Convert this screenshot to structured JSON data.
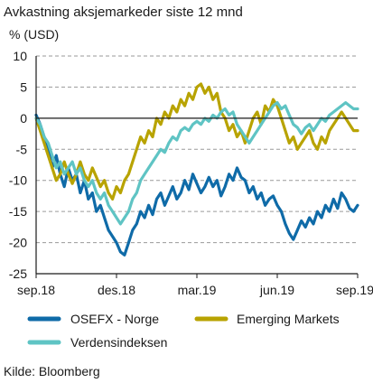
{
  "chart_data": {
    "type": "line",
    "title": "Avkastning aksjemarkeder siste 12 mnd",
    "ylabel": "% (USD)",
    "ylim": [
      -25,
      10
    ],
    "yticks": [
      10,
      5,
      0,
      -5,
      -10,
      -15,
      -20,
      -25
    ],
    "x_start": 0,
    "x_end": 12,
    "xticks": [
      {
        "x": 0,
        "label": "sep.18"
      },
      {
        "x": 3,
        "label": "des.18"
      },
      {
        "x": 6,
        "label": "mar.19"
      },
      {
        "x": 9,
        "label": "jun.19"
      },
      {
        "x": 12,
        "label": "sep.19"
      }
    ],
    "grid": "dashed horizontal",
    "legend_position": "bottom",
    "source": "Kilde: Bloomberg",
    "series": [
      {
        "name": "OSEFX - Norge",
        "color": "#0f6ba8",
        "x": [
          0,
          0.15,
          0.3,
          0.45,
          0.6,
          0.75,
          0.9,
          1.05,
          1.2,
          1.35,
          1.5,
          1.65,
          1.8,
          1.95,
          2.1,
          2.25,
          2.4,
          2.55,
          2.7,
          2.85,
          3.0,
          3.15,
          3.3,
          3.45,
          3.6,
          3.75,
          3.9,
          4.05,
          4.2,
          4.35,
          4.5,
          4.65,
          4.8,
          4.95,
          5.1,
          5.25,
          5.4,
          5.55,
          5.7,
          5.85,
          6.0,
          6.15,
          6.3,
          6.45,
          6.6,
          6.75,
          6.9,
          7.05,
          7.2,
          7.35,
          7.5,
          7.65,
          7.8,
          7.95,
          8.1,
          8.25,
          8.4,
          8.55,
          8.7,
          8.85,
          9.0,
          9.15,
          9.3,
          9.45,
          9.6,
          9.75,
          9.9,
          10.05,
          10.2,
          10.35,
          10.5,
          10.65,
          10.8,
          10.95,
          11.1,
          11.25,
          11.4,
          11.55,
          11.7,
          11.85,
          12.0
        ],
        "values": [
          0.5,
          -1,
          -3,
          -5,
          -8,
          -6,
          -9,
          -11,
          -8,
          -10,
          -9,
          -12,
          -10,
          -13,
          -12,
          -15,
          -14,
          -16,
          -18,
          -19,
          -20,
          -21.5,
          -22,
          -20,
          -18,
          -17,
          -15,
          -16,
          -14,
          -15.5,
          -13,
          -12,
          -14,
          -12.5,
          -11,
          -13,
          -12,
          -10,
          -11.5,
          -9,
          -10.5,
          -12,
          -11,
          -9.5,
          -11,
          -10,
          -12.5,
          -11,
          -9,
          -10,
          -8,
          -9.5,
          -10,
          -12,
          -11,
          -13,
          -12,
          -14,
          -13,
          -12.5,
          -14,
          -15,
          -17,
          -18.5,
          -19.5,
          -18,
          -16.5,
          -17.5,
          -16,
          -17,
          -15,
          -16,
          -14,
          -15,
          -13,
          -14.5,
          -12,
          -13,
          -14.5,
          -15,
          -14
        ]
      },
      {
        "name": "Emerging Markets",
        "color": "#b8a300",
        "x": [
          0,
          0.15,
          0.3,
          0.45,
          0.6,
          0.75,
          0.9,
          1.05,
          1.2,
          1.35,
          1.5,
          1.65,
          1.8,
          1.95,
          2.1,
          2.25,
          2.4,
          2.55,
          2.7,
          2.85,
          3.0,
          3.15,
          3.3,
          3.45,
          3.6,
          3.75,
          3.9,
          4.05,
          4.2,
          4.35,
          4.5,
          4.65,
          4.8,
          4.95,
          5.1,
          5.25,
          5.4,
          5.55,
          5.7,
          5.85,
          6.0,
          6.15,
          6.3,
          6.45,
          6.6,
          6.75,
          6.9,
          7.05,
          7.2,
          7.35,
          7.5,
          7.65,
          7.8,
          7.95,
          8.1,
          8.25,
          8.4,
          8.55,
          8.7,
          8.85,
          9.0,
          9.15,
          9.3,
          9.45,
          9.6,
          9.75,
          9.9,
          10.05,
          10.2,
          10.35,
          10.5,
          10.65,
          10.8,
          10.95,
          11.1,
          11.25,
          11.4,
          11.55,
          11.7,
          11.85,
          12.0
        ],
        "values": [
          0,
          -2,
          -4,
          -6,
          -8,
          -10,
          -9,
          -7,
          -9,
          -10.5,
          -9,
          -7,
          -9,
          -10,
          -8,
          -9.5,
          -11,
          -10,
          -12,
          -13,
          -11,
          -12,
          -10,
          -9,
          -7,
          -5,
          -3,
          -4,
          -2,
          -3,
          0,
          -1,
          1,
          0,
          2,
          1,
          3,
          2,
          4,
          3,
          5,
          5.5,
          4,
          5,
          3,
          4,
          1,
          0,
          -2,
          -1,
          -3,
          -2,
          -4,
          -2,
          0,
          1,
          -1,
          2,
          1,
          3,
          2,
          0,
          -2,
          -4,
          -3,
          -5,
          -4,
          -3,
          -2,
          -4,
          -5,
          -3,
          -4,
          -2,
          -1,
          0,
          1,
          0,
          -1,
          -2,
          -2
        ]
      },
      {
        "name": "Verdensindeksen",
        "color": "#5fc4c4",
        "x": [
          0,
          0.15,
          0.3,
          0.45,
          0.6,
          0.75,
          0.9,
          1.05,
          1.2,
          1.35,
          1.5,
          1.65,
          1.8,
          1.95,
          2.1,
          2.25,
          2.4,
          2.55,
          2.7,
          2.85,
          3.0,
          3.15,
          3.3,
          3.45,
          3.6,
          3.75,
          3.9,
          4.05,
          4.2,
          4.35,
          4.5,
          4.65,
          4.8,
          4.95,
          5.1,
          5.25,
          5.4,
          5.55,
          5.7,
          5.85,
          6.0,
          6.15,
          6.3,
          6.45,
          6.6,
          6.75,
          6.9,
          7.05,
          7.2,
          7.35,
          7.5,
          7.65,
          7.8,
          7.95,
          8.1,
          8.25,
          8.4,
          8.55,
          8.7,
          8.85,
          9.0,
          9.15,
          9.3,
          9.45,
          9.6,
          9.75,
          9.9,
          10.05,
          10.2,
          10.35,
          10.5,
          10.65,
          10.8,
          10.95,
          11.1,
          11.25,
          11.4,
          11.55,
          11.7,
          11.85,
          12.0
        ],
        "values": [
          0,
          -1,
          -3,
          -4,
          -6,
          -8,
          -7,
          -9,
          -8,
          -7,
          -9,
          -8,
          -10,
          -11,
          -10,
          -12,
          -13,
          -12,
          -14,
          -15,
          -16,
          -17,
          -16,
          -15,
          -13,
          -12,
          -10,
          -9,
          -8,
          -7,
          -6,
          -5,
          -5.5,
          -4,
          -3,
          -3.5,
          -2,
          -1.5,
          -2,
          -1,
          -0.5,
          -1,
          0,
          -0.5,
          0.5,
          0,
          1,
          1.5,
          0.5,
          1,
          -1,
          -2,
          -3,
          -4,
          -3,
          -2,
          -1,
          0,
          1,
          2,
          2.5,
          1.5,
          2,
          0.5,
          -1,
          -1.5,
          -2.5,
          -1.5,
          -1,
          -2,
          -1,
          0,
          -0.5,
          0.5,
          1,
          1.5,
          2,
          2.5,
          2,
          1.5,
          1.5
        ]
      }
    ]
  }
}
